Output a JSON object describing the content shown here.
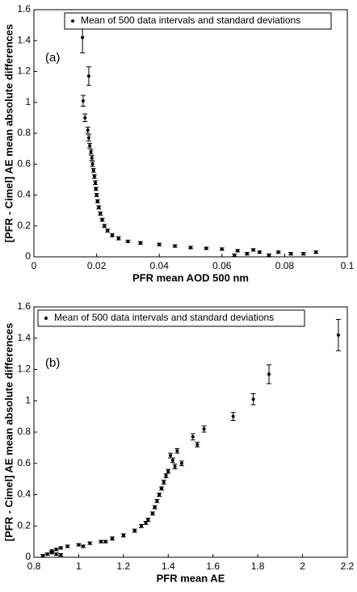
{
  "chart_data": [
    {
      "type": "scatter",
      "xlabel": "PFR mean AOD 500 nm",
      "ylabel": "[PFR - Cimel] AE mean absolute differences",
      "annotation": "(a)",
      "legend": "upper right",
      "xlim": [
        0,
        0.1
      ],
      "xticks": [
        0,
        0.02,
        0.04,
        0.06,
        0.08,
        0.1
      ],
      "ylim": [
        0,
        1.6
      ],
      "yticks": [
        0,
        0.2,
        0.4,
        0.6,
        0.8,
        1,
        1.2,
        1.4,
        1.6
      ],
      "series": [
        {
          "name": "Mean of 500 data intervals and standard deviations",
          "color": "#000000",
          "x": [
            0.0155,
            0.0175,
            0.0157,
            0.0163,
            0.0172,
            0.0175,
            0.0178,
            0.0182,
            0.0185,
            0.0187,
            0.019,
            0.0193,
            0.0196,
            0.0198,
            0.02,
            0.0203,
            0.0207,
            0.0212,
            0.0218,
            0.0225,
            0.0235,
            0.025,
            0.027,
            0.03,
            0.034,
            0.04,
            0.045,
            0.05,
            0.055,
            0.06,
            0.065,
            0.068,
            0.072,
            0.075,
            0.078,
            0.082,
            0.086,
            0.09,
            0.064,
            0.07
          ],
          "values": [
            1.42,
            1.17,
            1.01,
            0.9,
            0.82,
            0.77,
            0.72,
            0.68,
            0.64,
            0.6,
            0.56,
            0.52,
            0.48,
            0.44,
            0.4,
            0.36,
            0.32,
            0.28,
            0.24,
            0.2,
            0.17,
            0.14,
            0.12,
            0.1,
            0.09,
            0.08,
            0.07,
            0.06,
            0.055,
            0.05,
            0.04,
            0.02,
            0.03,
            0.01,
            0.03,
            0.02,
            0.02,
            0.03,
            0.01,
            0.045
          ],
          "errors": [
            0.1,
            0.06,
            0.035,
            0.025,
            0.02,
            0.02,
            0.015,
            0.015,
            0.015,
            0.015,
            0.012,
            0.012,
            0.012,
            0.01,
            0.01,
            0.01,
            0.01,
            0.01,
            0.01,
            0.01,
            0.01,
            0.01,
            0.01,
            0.008,
            0.008,
            0.008,
            0.008,
            0.008,
            0.008,
            0.008,
            0.008,
            0.008,
            0.008,
            0.008,
            0.008,
            0.008,
            0.008,
            0.008,
            0.008,
            0.008
          ]
        }
      ]
    },
    {
      "type": "scatter",
      "xlabel": "PFR mean AE",
      "ylabel": "[PFR - Cimel] AE mean absolute differences",
      "annotation": "(b)",
      "legend": "upper left",
      "xlim": [
        0.8,
        2.2
      ],
      "xticks": [
        0.8,
        1,
        1.2,
        1.4,
        1.6,
        1.8,
        2,
        2.2
      ],
      "ylim": [
        0,
        1.6
      ],
      "yticks": [
        0,
        0.2,
        0.4,
        0.6,
        0.8,
        1,
        1.2,
        1.4,
        1.6
      ],
      "series": [
        {
          "name": "Mean of 500 data intervals and standard deviations",
          "color": "#000000",
          "x": [
            2.16,
            1.85,
            1.78,
            1.69,
            1.56,
            1.51,
            1.53,
            1.44,
            1.41,
            1.46,
            1.42,
            1.43,
            1.4,
            1.39,
            1.38,
            1.37,
            1.36,
            1.35,
            1.34,
            1.33,
            1.31,
            1.28,
            1.25,
            1.2,
            1.15,
            1.1,
            1.05,
            1.0,
            0.95,
            0.92,
            0.9,
            0.88,
            0.86,
            0.84,
            0.88,
            0.9,
            0.92,
            1.02,
            1.12,
            1.3
          ],
          "values": [
            1.42,
            1.17,
            1.01,
            0.9,
            0.82,
            0.77,
            0.72,
            0.68,
            0.65,
            0.6,
            0.62,
            0.58,
            0.55,
            0.52,
            0.48,
            0.44,
            0.4,
            0.36,
            0.32,
            0.28,
            0.24,
            0.2,
            0.17,
            0.14,
            0.12,
            0.1,
            0.09,
            0.08,
            0.07,
            0.06,
            0.05,
            0.04,
            0.02,
            0.01,
            0.03,
            0.02,
            0.015,
            0.07,
            0.1,
            0.22
          ],
          "errors": [
            0.1,
            0.06,
            0.035,
            0.025,
            0.02,
            0.02,
            0.015,
            0.015,
            0.015,
            0.015,
            0.015,
            0.015,
            0.012,
            0.012,
            0.012,
            0.01,
            0.01,
            0.01,
            0.01,
            0.01,
            0.01,
            0.01,
            0.01,
            0.01,
            0.01,
            0.008,
            0.008,
            0.008,
            0.008,
            0.008,
            0.008,
            0.008,
            0.008,
            0.008,
            0.008,
            0.008,
            0.008,
            0.008,
            0.008,
            0.01
          ]
        }
      ]
    }
  ]
}
